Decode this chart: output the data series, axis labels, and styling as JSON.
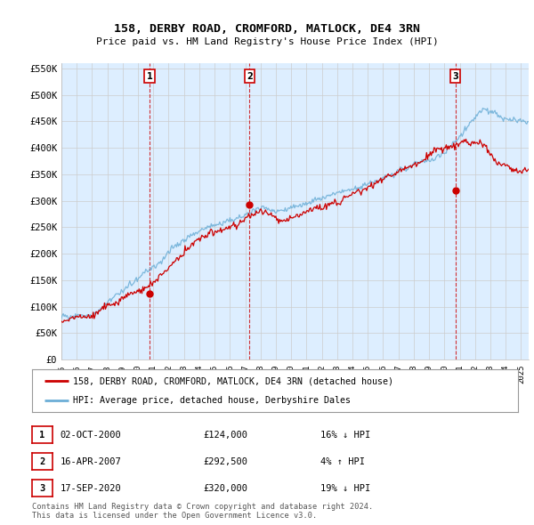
{
  "title": "158, DERBY ROAD, CROMFORD, MATLOCK, DE4 3RN",
  "subtitle": "Price paid vs. HM Land Registry's House Price Index (HPI)",
  "ylim": [
    0,
    560000
  ],
  "yticks": [
    0,
    50000,
    100000,
    150000,
    200000,
    250000,
    300000,
    350000,
    400000,
    450000,
    500000,
    550000
  ],
  "ytick_labels": [
    "£0",
    "£50K",
    "£100K",
    "£150K",
    "£200K",
    "£250K",
    "£300K",
    "£350K",
    "£400K",
    "£450K",
    "£500K",
    "£550K"
  ],
  "sale_color": "#cc0000",
  "hpi_color": "#6baed6",
  "vline_color": "#cc0000",
  "chart_bg": "#ddeeff",
  "sale_dates_num": [
    2000.75,
    2007.28,
    2020.71
  ],
  "sale_prices": [
    124000,
    292500,
    320000
  ],
  "sale_labels": [
    "1",
    "2",
    "3"
  ],
  "legend_sale_label": "158, DERBY ROAD, CROMFORD, MATLOCK, DE4 3RN (detached house)",
  "legend_hpi_label": "HPI: Average price, detached house, Derbyshire Dales",
  "table_rows": [
    [
      "1",
      "02-OCT-2000",
      "£124,000",
      "16% ↓ HPI"
    ],
    [
      "2",
      "16-APR-2007",
      "£292,500",
      "4% ↑ HPI"
    ],
    [
      "3",
      "17-SEP-2020",
      "£320,000",
      "19% ↓ HPI"
    ]
  ],
  "footer": "Contains HM Land Registry data © Crown copyright and database right 2024.\nThis data is licensed under the Open Government Licence v3.0.",
  "background_color": "#ffffff",
  "grid_color": "#cccccc"
}
